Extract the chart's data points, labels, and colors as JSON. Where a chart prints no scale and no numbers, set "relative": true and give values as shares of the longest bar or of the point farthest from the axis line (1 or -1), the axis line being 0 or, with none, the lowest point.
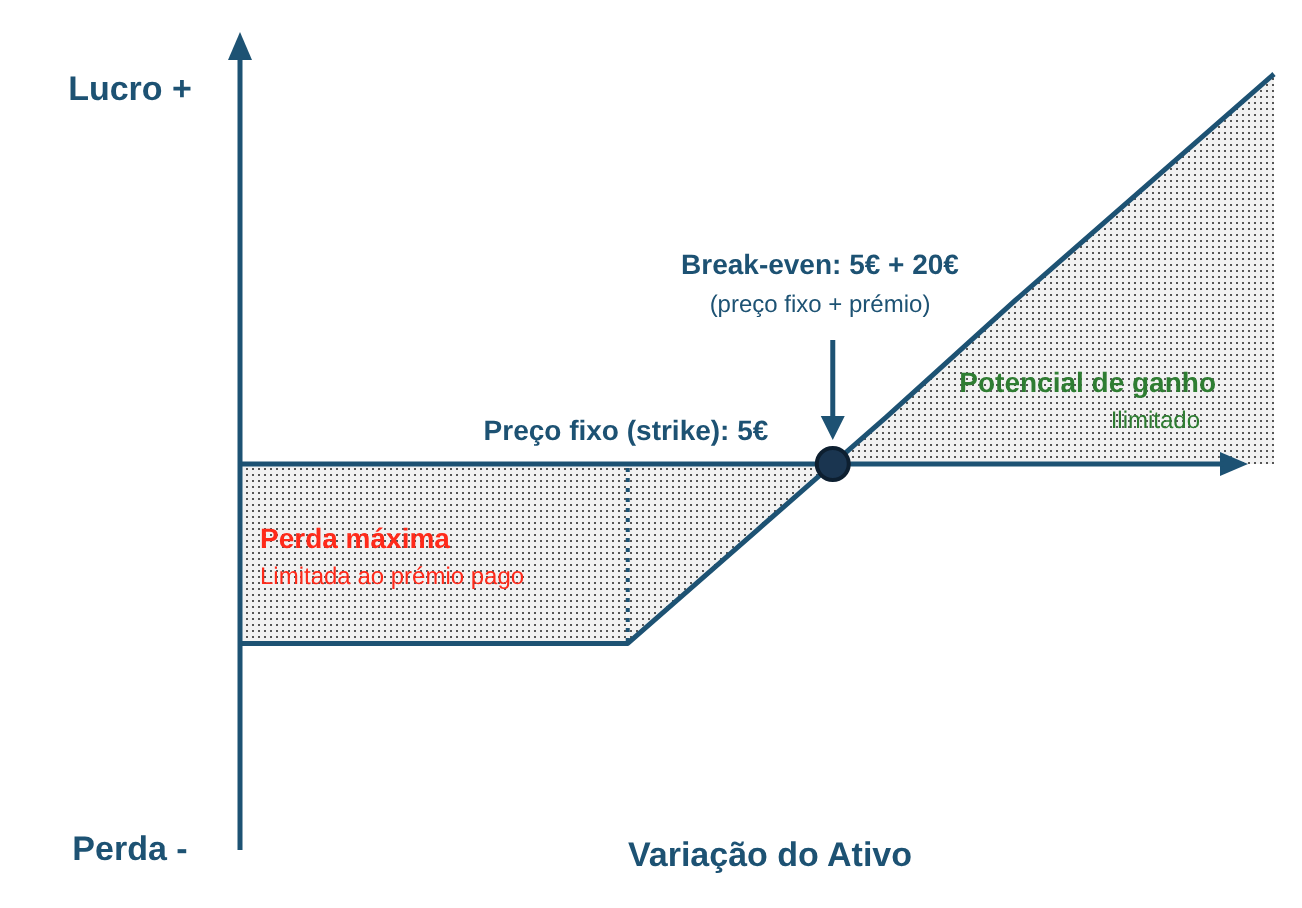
{
  "chart_data": {
    "type": "area",
    "relative": true,
    "ylabel": "Lucro +",
    "categories": [
      null,
      null,
      null,
      null,
      null,
      null,
      null,
      null,
      null
    ],
    "series": [
      {
        "color": "#1d5273",
        "values": [
          -0.46,
          -0.46,
          -0.46,
          -0.46,
          -0.17,
          0.12,
          0.42,
          0.71,
          1
        ]
      }
    ],
    "ref_lines": [
      {
        "axis": "y",
        "value": 0,
        "color": "#1d5273"
      }
    ],
    "annotations": [
      "Perda -",
      "Break-even: 5€ + 20€",
      "(preço fixo + prémio)",
      "Perda máxima",
      "Limitada ao prémio pago",
      "Potencial de ganho",
      "Ilimitado",
      "Preço fixo (strike): 5€",
      "Variação do Ativo"
    ]
  }
}
